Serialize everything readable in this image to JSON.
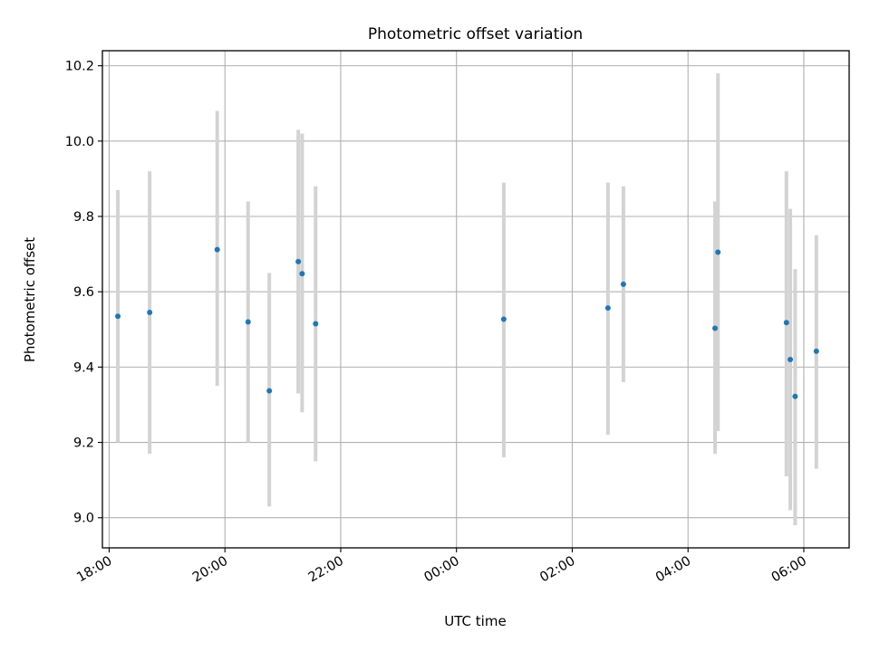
{
  "chart_data": {
    "type": "scatter",
    "title": "Photometric offset variation",
    "xlabel": "UTC time",
    "ylabel": "Photometric offset",
    "grid": true,
    "xlim": [
      "17:53",
      "06:47"
    ],
    "ylim": [
      8.92,
      10.24
    ],
    "xticks": [
      "18:00",
      "20:00",
      "22:00",
      "00:00",
      "02:00",
      "04:00",
      "06:00"
    ],
    "yticks": [
      9.0,
      9.2,
      9.4,
      9.6,
      9.8,
      10.0,
      10.2
    ],
    "colors": {
      "point": "#1f77b4",
      "errorbar": "#d3d3d3",
      "grid": "#b0b0b0"
    },
    "points": [
      {
        "x": "18:09",
        "y": 9.535,
        "ylow": 9.2,
        "yhigh": 9.87
      },
      {
        "x": "18:42",
        "y": 9.545,
        "ylow": 9.17,
        "yhigh": 9.92
      },
      {
        "x": "19:52",
        "y": 9.712,
        "ylow": 9.35,
        "yhigh": 10.08
      },
      {
        "x": "20:24",
        "y": 9.52,
        "ylow": 9.2,
        "yhigh": 9.84
      },
      {
        "x": "20:46",
        "y": 9.337,
        "ylow": 9.03,
        "yhigh": 9.65
      },
      {
        "x": "21:16",
        "y": 9.68,
        "ylow": 9.33,
        "yhigh": 10.03
      },
      {
        "x": "21:20",
        "y": 9.648,
        "ylow": 9.28,
        "yhigh": 10.02
      },
      {
        "x": "21:34",
        "y": 9.515,
        "ylow": 9.15,
        "yhigh": 9.88
      },
      {
        "x": "00:49",
        "y": 9.527,
        "ylow": 9.16,
        "yhigh": 9.89
      },
      {
        "x": "02:37",
        "y": 9.557,
        "ylow": 9.22,
        "yhigh": 9.89
      },
      {
        "x": "02:53",
        "y": 9.62,
        "ylow": 9.36,
        "yhigh": 9.88
      },
      {
        "x": "04:28",
        "y": 9.503,
        "ylow": 9.17,
        "yhigh": 9.84
      },
      {
        "x": "04:31",
        "y": 9.705,
        "ylow": 9.23,
        "yhigh": 10.18
      },
      {
        "x": "05:42",
        "y": 9.518,
        "ylow": 9.11,
        "yhigh": 9.92
      },
      {
        "x": "05:46",
        "y": 9.42,
        "ylow": 9.02,
        "yhigh": 9.82
      },
      {
        "x": "05:51",
        "y": 9.322,
        "ylow": 8.98,
        "yhigh": 9.66
      },
      {
        "x": "06:13",
        "y": 9.442,
        "ylow": 9.13,
        "yhigh": 9.75
      }
    ]
  }
}
